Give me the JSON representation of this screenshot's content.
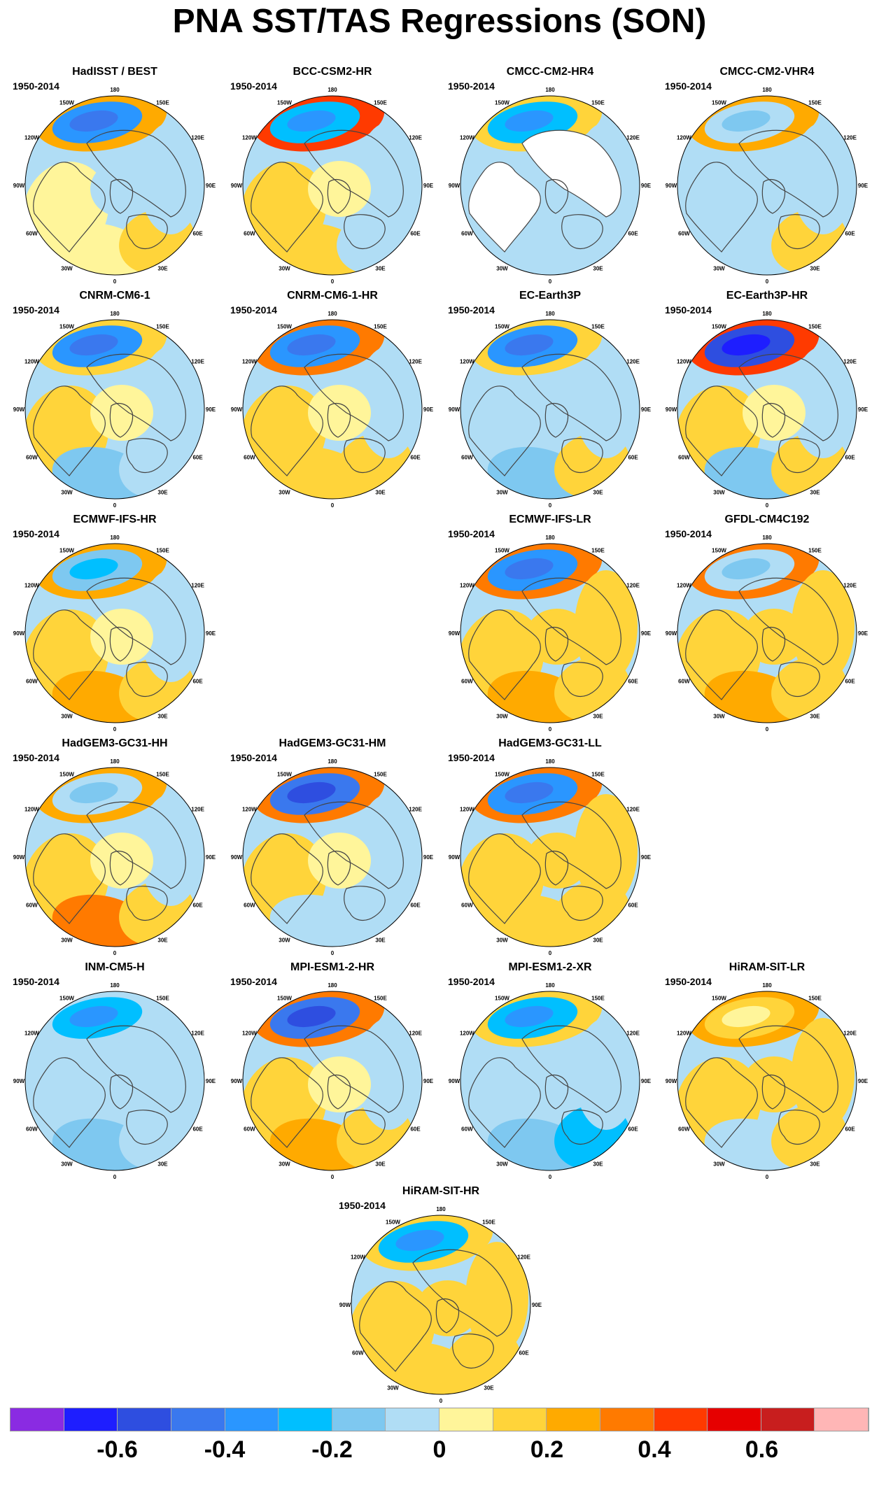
{
  "title": "PNA SST/TAS Regressions (SON)",
  "period": "1950-2014",
  "meridian_labels": [
    "180",
    "150E",
    "120E",
    "90E",
    "60E",
    "30E",
    "0",
    "30W",
    "60W",
    "90W",
    "120W",
    "150W"
  ],
  "panels": [
    {
      "name": "HadISST / BEST",
      "pattern": {
        "npac": -0.4,
        "npac_rim": 0.2,
        "nam": 0.0,
        "natl": 0.0,
        "eur": 0.1,
        "asia": -0.1
      }
    },
    {
      "name": "BCC-CSM2-HR",
      "pattern": {
        "npac": -0.3,
        "npac_rim": 0.4,
        "nam": 0.1,
        "natl": 0.1,
        "eur": -0.1,
        "asia": -0.1
      }
    },
    {
      "name": "CMCC-CM2-HR4",
      "pattern": {
        "npac": -0.3,
        "npac_rim": 0.1,
        "nam": -0.1,
        "natl": -0.1,
        "eur": -0.1,
        "asia": -0.1,
        "land_masked": true
      }
    },
    {
      "name": "CMCC-CM2-VHR4",
      "pattern": {
        "npac": -0.1,
        "npac_rim": 0.2,
        "nam": -0.1,
        "natl": -0.1,
        "eur": 0.1,
        "asia": -0.1
      }
    },
    {
      "name": "CNRM-CM6-1",
      "pattern": {
        "npac": -0.4,
        "npac_rim": 0.1,
        "nam": 0.1,
        "natl": -0.2,
        "eur": -0.1,
        "asia": -0.1
      }
    },
    {
      "name": "CNRM-CM6-1-HR",
      "pattern": {
        "npac": -0.4,
        "npac_rim": 0.3,
        "nam": 0.1,
        "natl": 0.1,
        "eur": 0.1,
        "asia": -0.1
      }
    },
    {
      "name": "EC-Earth3P",
      "pattern": {
        "npac": -0.4,
        "npac_rim": 0.1,
        "nam": -0.1,
        "natl": -0.2,
        "eur": 0.1,
        "asia": -0.1
      }
    },
    {
      "name": "EC-Earth3P-HR",
      "pattern": {
        "npac": -0.6,
        "npac_rim": 0.4,
        "nam": 0.1,
        "natl": -0.2,
        "eur": 0.1,
        "asia": -0.1
      }
    },
    {
      "name": "ECMWF-IFS-HR",
      "pattern": {
        "npac": -0.2,
        "npac_rim": 0.2,
        "nam": 0.1,
        "natl": 0.2,
        "eur": 0.1,
        "asia": -0.1
      }
    },
    {
      "name": "ECMWF-IFS-LR",
      "pattern": {
        "npac": -0.4,
        "npac_rim": 0.3,
        "nam": 0.1,
        "natl": 0.2,
        "eur": 0.1,
        "asia": 0.1
      }
    },
    {
      "name": "GFDL-CM4C192",
      "pattern": {
        "npac": -0.1,
        "npac_rim": 0.3,
        "nam": 0.1,
        "natl": 0.2,
        "eur": 0.1,
        "asia": 0.1
      }
    },
    {
      "name": "HadGEM3-GC31-HH",
      "pattern": {
        "npac": -0.1,
        "npac_rim": 0.2,
        "nam": 0.1,
        "natl": 0.3,
        "eur": 0.1,
        "asia": -0.1
      }
    },
    {
      "name": "HadGEM3-GC31-HM",
      "pattern": {
        "npac": -0.5,
        "npac_rim": 0.3,
        "nam": 0.1,
        "natl": -0.1,
        "eur": -0.1,
        "asia": -0.1
      }
    },
    {
      "name": "HadGEM3-GC31-LL",
      "pattern": {
        "npac": -0.4,
        "npac_rim": 0.3,
        "nam": 0.1,
        "natl": 0.1,
        "eur": 0.1,
        "asia": 0.1
      }
    },
    {
      "name": "INM-CM5-H",
      "pattern": {
        "npac": -0.3,
        "npac_rim": -0.1,
        "nam": -0.1,
        "natl": -0.2,
        "eur": -0.1,
        "asia": -0.1
      }
    },
    {
      "name": "MPI-ESM1-2-HR",
      "pattern": {
        "npac": -0.5,
        "npac_rim": 0.3,
        "nam": 0.1,
        "natl": 0.2,
        "eur": 0.1,
        "asia": -0.1
      }
    },
    {
      "name": "MPI-ESM1-2-XR",
      "pattern": {
        "npac": -0.3,
        "npac_rim": 0.1,
        "nam": -0.1,
        "natl": -0.2,
        "eur": -0.3,
        "asia": -0.1
      }
    },
    {
      "name": "HiRAM-SIT-LR",
      "pattern": {
        "npac": 0.1,
        "npac_rim": 0.2,
        "nam": 0.1,
        "natl": -0.1,
        "eur": 0.1,
        "asia": 0.1
      }
    },
    {
      "name": "HiRAM-SIT-HR",
      "pattern": {
        "npac": -0.3,
        "npac_rim": 0.1,
        "nam": 0.1,
        "natl": 0.1,
        "eur": 0.1,
        "asia": 0.1
      }
    }
  ],
  "colorbar": {
    "colors": [
      "#8A2BE2",
      "#1E1EFF",
      "#2E4EE0",
      "#3A78EE",
      "#2A96FF",
      "#00BFFF",
      "#7EC8F0",
      "#B0DDF5",
      "#FFF59A",
      "#FFD43A",
      "#FFAA00",
      "#FF7A00",
      "#FF3A00",
      "#E60000",
      "#C81E1E",
      "#FFB6B6"
    ],
    "tick_labels": [
      "-0.6",
      "-0.4",
      "-0.2",
      "0",
      "0.2",
      "0.4",
      "0.6"
    ]
  },
  "colors": {
    "coastline": "#444444",
    "masked_land": "#ffffff",
    "border": "#000000"
  }
}
